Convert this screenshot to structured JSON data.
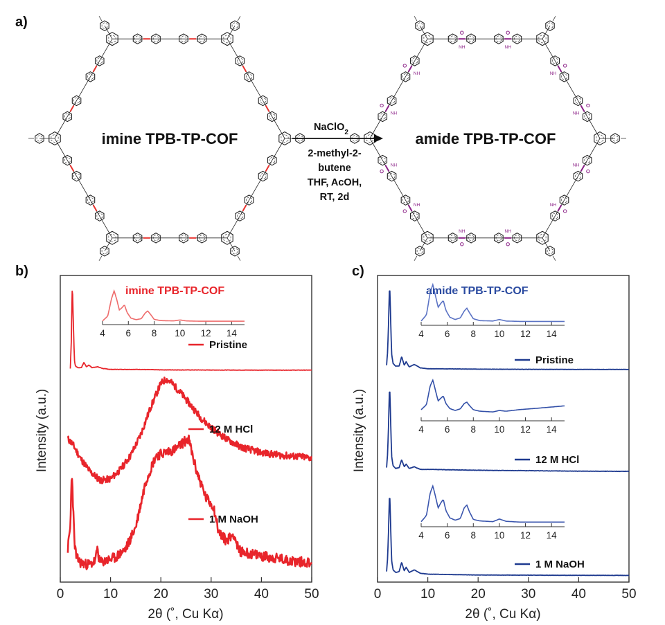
{
  "panel_labels": {
    "a": "a)",
    "b": "b)",
    "c": "c)"
  },
  "scheme": {
    "left_title": "imine TPB-TP-COF",
    "right_title": "amide TPB-TP-COF",
    "reagent_main": "NaClO",
    "reagent_sub": "2",
    "conditions": [
      "2-methyl-2-",
      "butene",
      "THF, AcOH,",
      "RT, 2d"
    ],
    "amide_group_label": "NH",
    "colors": {
      "imine_linkage": "#e8322e",
      "amide_linkage": "#8a1f86",
      "framework": "#222222"
    }
  },
  "colors": {
    "red_series": "#e8252b",
    "blue_series": "#1e3a8f"
  },
  "chart_data": [
    {
      "type": "line",
      "panel": "b)",
      "xlabel": "2θ (˚, Cu Kα)",
      "ylabel": "Intensity (a.u.)",
      "xlim": [
        0,
        50
      ],
      "xticks": [
        0,
        10,
        20,
        30,
        40,
        50
      ],
      "y_ticks_shown": false,
      "color": "#e8252b",
      "series": [
        {
          "name": "Pristine",
          "x": [
            2,
            2.2,
            2.4,
            2.6,
            2.8,
            3.0,
            3.5,
            4.2,
            4.7,
            5.2,
            5.7,
            6.3,
            7.4,
            8.5,
            10,
            15,
            20,
            30,
            40,
            50
          ],
          "y": [
            0.02,
            0.35,
            1.0,
            0.55,
            0.12,
            0.05,
            0.03,
            0.03,
            0.09,
            0.04,
            0.06,
            0.03,
            0.04,
            0.02,
            0.01,
            0.01,
            0.005,
            0.003,
            0.002,
            0.002
          ]
        },
        {
          "name": "12 M HCl",
          "x": [
            1.5,
            2.5,
            4,
            6,
            8,
            10,
            12,
            14,
            16,
            18,
            20,
            21,
            22,
            24,
            26,
            28,
            30,
            33,
            36,
            40,
            44,
            48,
            50
          ],
          "y": [
            0.42,
            0.38,
            0.28,
            0.18,
            0.12,
            0.13,
            0.2,
            0.3,
            0.45,
            0.65,
            0.82,
            0.85,
            0.83,
            0.75,
            0.66,
            0.57,
            0.5,
            0.42,
            0.36,
            0.32,
            0.3,
            0.29,
            0.28
          ]
        },
        {
          "name": "1 M NaOH",
          "x": [
            1.5,
            2.0,
            2.3,
            2.5,
            2.8,
            3.2,
            4,
            5,
            6,
            7,
            7.4,
            7.8,
            9,
            11,
            13,
            15,
            17,
            19,
            21,
            23,
            24.5,
            25.5,
            27,
            29,
            30.5,
            31.5,
            33,
            34.5,
            35.5,
            38,
            42,
            46,
            50
          ],
          "y": [
            0.15,
            0.28,
            0.62,
            0.45,
            0.2,
            0.1,
            0.07,
            0.06,
            0.06,
            0.08,
            0.16,
            0.07,
            0.08,
            0.1,
            0.15,
            0.28,
            0.55,
            0.7,
            0.72,
            0.74,
            0.78,
            0.8,
            0.62,
            0.45,
            0.4,
            0.25,
            0.2,
            0.24,
            0.14,
            0.12,
            0.1,
            0.08,
            0.07
          ]
        }
      ],
      "inset": {
        "title": "imine TPB-TP-COF",
        "xlim": [
          4,
          15
        ],
        "xticks": [
          4,
          6,
          8,
          10,
          12,
          14
        ],
        "x": [
          4.0,
          4.4,
          4.7,
          4.9,
          5.1,
          5.3,
          5.5,
          5.7,
          5.9,
          6.2,
          6.6,
          7.0,
          7.3,
          7.5,
          7.7,
          8.0,
          8.5,
          9.5,
          10.0,
          10.5,
          11.5,
          13,
          15
        ],
        "y": [
          0.03,
          0.18,
          0.75,
          1.0,
          0.72,
          0.38,
          0.45,
          0.55,
          0.3,
          0.12,
          0.07,
          0.1,
          0.28,
          0.35,
          0.25,
          0.08,
          0.04,
          0.03,
          0.06,
          0.03,
          0.02,
          0.02,
          0.02
        ]
      }
    },
    {
      "type": "line",
      "panel": "c)",
      "xlabel": "2θ (˚, Cu Kα)",
      "ylabel": "Intensity (a.u.)",
      "xlim": [
        0,
        50
      ],
      "xticks": [
        0,
        10,
        20,
        30,
        40,
        50
      ],
      "y_ticks_shown": false,
      "color": "#1e3a8f",
      "series": [
        {
          "name": "Pristine",
          "x": [
            1.8,
            2.0,
            2.2,
            2.4,
            2.6,
            2.8,
            3.1,
            3.6,
            4.3,
            4.8,
            5.3,
            5.7,
            6.3,
            7.3,
            8.5,
            10,
            15,
            20,
            30,
            40,
            50
          ],
          "y": [
            0.05,
            0.2,
            0.55,
            1.0,
            0.6,
            0.18,
            0.07,
            0.04,
            0.04,
            0.15,
            0.05,
            0.09,
            0.03,
            0.06,
            0.02,
            0.01,
            0.008,
            0.005,
            0.003,
            0.002,
            0.002
          ]
        },
        {
          "name": "12 M HCl",
          "x": [
            1.8,
            2.0,
            2.2,
            2.4,
            2.6,
            2.8,
            3.1,
            3.6,
            4.3,
            4.8,
            5.3,
            5.7,
            6.3,
            7.3,
            8.5,
            10,
            15,
            20,
            30,
            40,
            50
          ],
          "y": [
            0.05,
            0.2,
            0.55,
            1.0,
            0.6,
            0.18,
            0.07,
            0.04,
            0.05,
            0.14,
            0.06,
            0.09,
            0.04,
            0.06,
            0.03,
            0.03,
            0.025,
            0.02,
            0.015,
            0.01,
            0.008
          ]
        },
        {
          "name": "1 M NaOH",
          "x": [
            1.8,
            2.0,
            2.2,
            2.4,
            2.6,
            2.8,
            3.1,
            3.6,
            4.3,
            4.8,
            5.3,
            5.7,
            6.3,
            7.3,
            8.5,
            10,
            15,
            20,
            30,
            40,
            50
          ],
          "y": [
            0.05,
            0.2,
            0.55,
            1.0,
            0.6,
            0.18,
            0.07,
            0.04,
            0.05,
            0.16,
            0.06,
            0.1,
            0.04,
            0.07,
            0.03,
            0.02,
            0.015,
            0.01,
            0.008,
            0.006,
            0.005
          ]
        }
      ],
      "insets": [
        {
          "title": "amide TPB-TP-COF",
          "xlim": [
            4,
            15
          ],
          "xticks": [
            4,
            6,
            8,
            10,
            12,
            14
          ],
          "x": [
            4.0,
            4.4,
            4.7,
            4.9,
            5.1,
            5.3,
            5.5,
            5.7,
            5.9,
            6.2,
            6.6,
            7.0,
            7.3,
            7.5,
            7.7,
            8.0,
            8.5,
            9.5,
            10.0,
            10.5,
            11.5,
            13,
            15
          ],
          "y": [
            0.04,
            0.2,
            0.8,
            1.0,
            0.7,
            0.4,
            0.5,
            0.58,
            0.32,
            0.14,
            0.08,
            0.12,
            0.3,
            0.38,
            0.26,
            0.1,
            0.05,
            0.04,
            0.08,
            0.04,
            0.03,
            0.03,
            0.03
          ]
        },
        {
          "title": "",
          "xlim": [
            4,
            15
          ],
          "xticks": [
            4,
            6,
            8,
            10,
            12,
            14
          ],
          "x": [
            4.0,
            4.4,
            4.7,
            4.9,
            5.1,
            5.3,
            5.5,
            5.7,
            5.9,
            6.2,
            6.6,
            7.0,
            7.3,
            7.5,
            7.7,
            8.0,
            8.5,
            9.5,
            10.0,
            10.5,
            11.5,
            13,
            15
          ],
          "y": [
            0.22,
            0.35,
            0.85,
            1.0,
            0.72,
            0.45,
            0.52,
            0.58,
            0.38,
            0.25,
            0.2,
            0.24,
            0.38,
            0.42,
            0.33,
            0.22,
            0.18,
            0.16,
            0.2,
            0.18,
            0.22,
            0.26,
            0.32
          ]
        },
        {
          "title": "",
          "xlim": [
            4,
            15
          ],
          "xticks": [
            4,
            6,
            8,
            10,
            12,
            14
          ],
          "x": [
            4.0,
            4.4,
            4.7,
            4.9,
            5.1,
            5.3,
            5.5,
            5.7,
            5.9,
            6.2,
            6.6,
            7.0,
            7.3,
            7.5,
            7.7,
            8.0,
            8.5,
            9.5,
            10.0,
            10.5,
            11.5,
            13,
            15
          ],
          "y": [
            0.06,
            0.22,
            0.82,
            1.0,
            0.72,
            0.42,
            0.55,
            0.65,
            0.35,
            0.16,
            0.1,
            0.14,
            0.42,
            0.5,
            0.32,
            0.12,
            0.08,
            0.06,
            0.13,
            0.07,
            0.05,
            0.05,
            0.05
          ]
        }
      ]
    }
  ]
}
